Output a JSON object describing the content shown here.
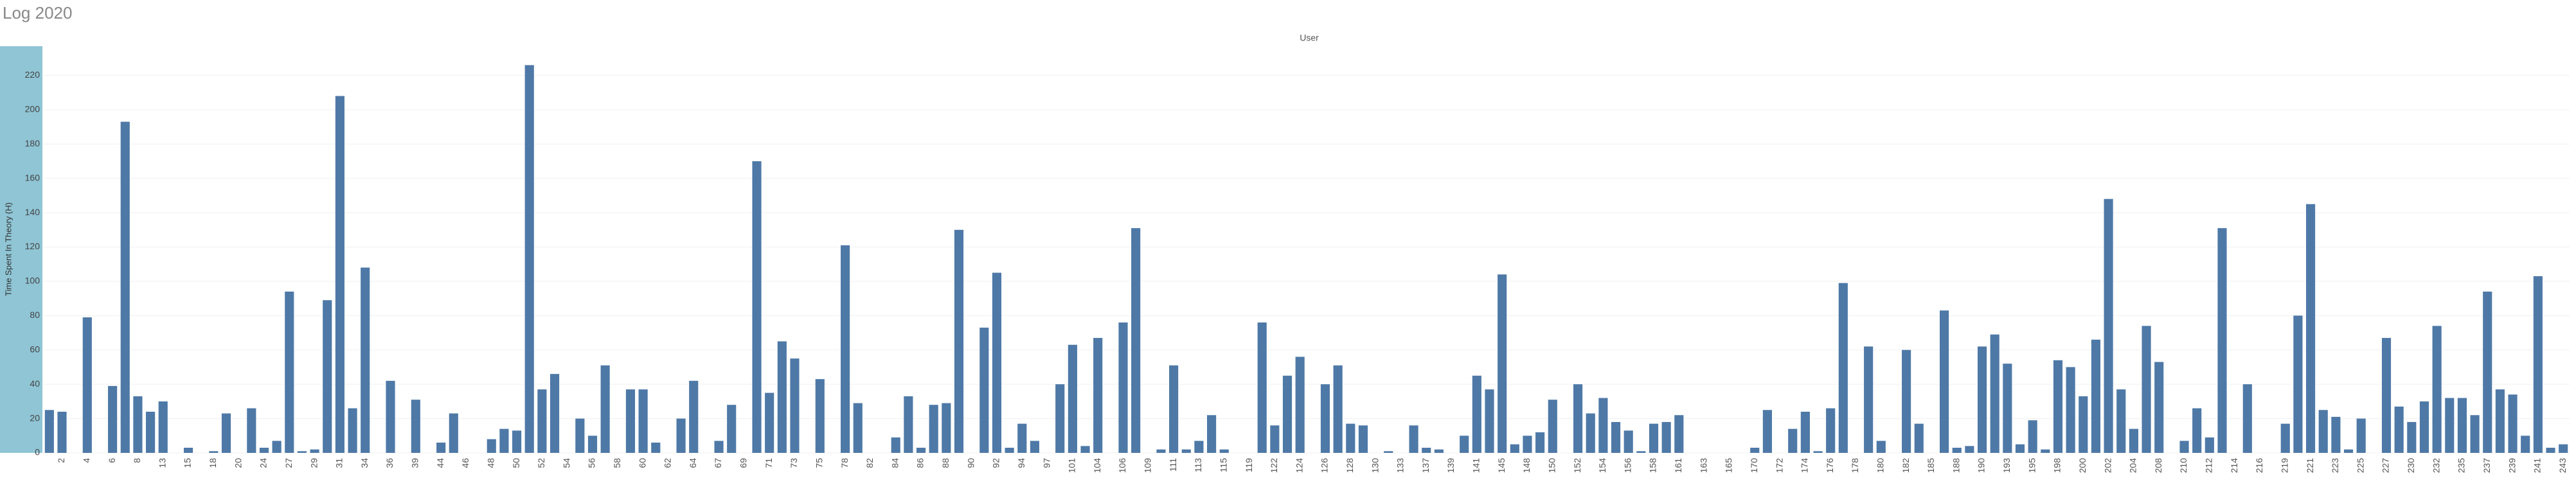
{
  "chart_data": {
    "type": "bar",
    "title": "Log 2020",
    "subtitle": "User",
    "y_label": "Time Spent In Theory (H)",
    "categories": [
      null,
      "2",
      null,
      "4",
      null,
      "6",
      null,
      "8",
      null,
      "13",
      null,
      "15",
      null,
      "18",
      null,
      "20",
      null,
      "24",
      null,
      "27",
      null,
      "29",
      null,
      "31",
      null,
      "34",
      null,
      "36",
      null,
      "39",
      null,
      "44",
      null,
      "46",
      null,
      "48",
      null,
      "50",
      null,
      "52",
      null,
      "54",
      null,
      "56",
      null,
      "58",
      null,
      "60",
      null,
      "62",
      null,
      "64",
      null,
      "67",
      null,
      "69",
      null,
      "71",
      null,
      "73",
      null,
      "75",
      null,
      "78",
      null,
      "82",
      null,
      "84",
      null,
      "86",
      null,
      "88",
      null,
      "90",
      null,
      "92",
      null,
      "94",
      null,
      "97",
      null,
      "101",
      null,
      "104",
      null,
      "106",
      null,
      "109",
      null,
      "111",
      null,
      "113",
      null,
      "115",
      null,
      "119",
      null,
      "122",
      null,
      "124",
      null,
      "126",
      null,
      "128",
      null,
      "130",
      null,
      "133",
      null,
      "137",
      null,
      "139",
      null,
      "141",
      null,
      "145",
      null,
      "148",
      null,
      "150",
      null,
      "152",
      null,
      "154",
      null,
      "156",
      null,
      "158",
      null,
      "161",
      null,
      "163",
      null,
      "165",
      null,
      "170",
      null,
      "172",
      null,
      "174",
      null,
      "176",
      null,
      "178",
      null,
      "180",
      null,
      "182",
      null,
      "185",
      null,
      "188",
      null,
      "190",
      null,
      "193",
      null,
      "195",
      null,
      "198",
      null,
      "200",
      null,
      "202",
      null,
      "204",
      null,
      "208",
      null,
      "210",
      null,
      "212",
      null,
      "214",
      null,
      "216",
      null,
      "219",
      null,
      "221",
      null,
      "223",
      null,
      "225",
      null,
      "227",
      null,
      "230",
      null,
      "232",
      null,
      "235",
      null,
      "237",
      null,
      "239",
      null,
      "241",
      null,
      "243"
    ],
    "values": [
      25,
      24,
      0,
      79,
      0,
      39,
      193,
      33,
      24,
      30,
      0,
      3,
      0,
      1,
      23,
      0,
      26,
      3,
      7,
      94,
      1,
      2,
      89,
      208,
      26,
      108,
      0,
      42,
      0,
      31,
      0,
      6,
      23,
      0,
      0,
      8,
      14,
      13,
      226,
      37,
      46,
      0,
      20,
      10,
      51,
      0,
      37,
      37,
      6,
      0,
      20,
      42,
      0,
      7,
      28,
      0,
      170,
      35,
      65,
      55,
      0,
      43,
      0,
      121,
      29,
      0,
      0,
      9,
      33,
      3,
      28,
      29,
      130,
      0,
      73,
      105,
      3,
      17,
      7,
      0,
      40,
      63,
      4,
      67,
      0,
      76,
      131,
      0,
      2,
      51,
      2,
      7,
      22,
      2,
      0,
      0,
      76,
      16,
      45,
      56,
      0,
      40,
      51,
      17,
      16,
      0,
      1,
      0,
      16,
      3,
      2,
      0,
      10,
      45,
      37,
      104,
      5,
      10,
      12,
      31,
      0,
      40,
      23,
      32,
      18,
      13,
      1,
      17,
      18,
      22,
      0,
      0,
      0,
      0,
      0,
      3,
      25,
      0,
      14,
      24,
      1,
      26,
      99,
      0,
      62,
      7,
      0,
      60,
      17,
      0,
      83,
      3,
      4,
      62,
      69,
      52,
      5,
      19,
      2,
      54,
      50,
      33,
      66,
      148,
      37,
      14,
      74,
      53,
      0,
      7,
      26,
      9,
      131,
      0,
      40,
      0,
      0,
      17,
      80,
      145,
      25,
      21,
      2,
      20,
      0,
      67,
      27,
      18,
      30,
      74,
      32,
      32,
      22,
      94,
      37,
      34,
      10,
      103,
      3,
      5
    ],
    "color": "#4e79a7",
    "ylim": [
      0,
      237
    ],
    "yticks": [
      0,
      20,
      40,
      60,
      80,
      100,
      120,
      140,
      160,
      180,
      200,
      220
    ],
    "grid": true
  }
}
